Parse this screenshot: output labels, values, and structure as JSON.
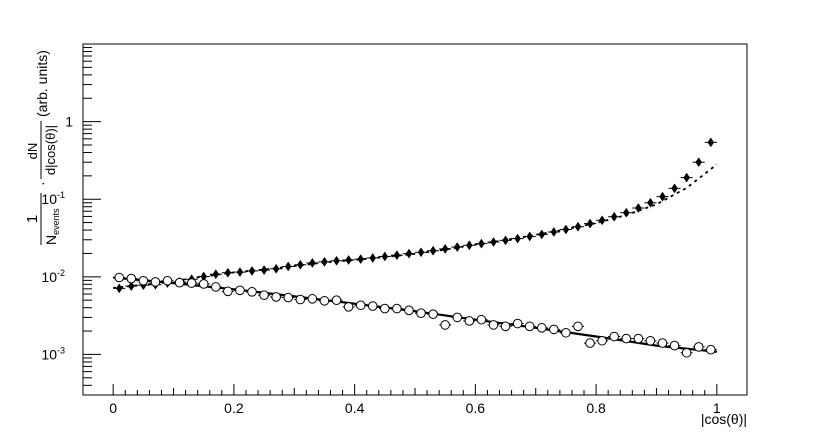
{
  "chart_data": {
    "type": "scatter",
    "title": "",
    "xlabel": "|cos(θ)|",
    "ylabel": {
      "prefix": "1",
      "n": "N",
      "n_sub": "events",
      "dot": "·",
      "dn": "dN",
      "dcos": "d|cos(θ)|",
      "units": "(arb. units)"
    },
    "xlim": [
      -0.05,
      1.05
    ],
    "ylim": [
      0.0003,
      10
    ],
    "yscale": "log",
    "grid": false,
    "legend": "none",
    "x_ticks": [
      {
        "value": 0,
        "label": "0"
      },
      {
        "value": 0.2,
        "label": "0.2"
      },
      {
        "value": 0.4,
        "label": "0.4"
      },
      {
        "value": 0.6,
        "label": "0.6"
      },
      {
        "value": 0.8,
        "label": "0.8"
      },
      {
        "value": 1,
        "label": "1"
      }
    ],
    "y_ticks": [
      {
        "value": 0.001,
        "base": "10",
        "exp": "-3"
      },
      {
        "value": 0.01,
        "base": "10",
        "exp": "-2"
      },
      {
        "value": 0.1,
        "base": "10",
        "exp": "-1"
      },
      {
        "value": 1,
        "base": "1",
        "exp": ""
      }
    ],
    "series": [
      {
        "marker": "filled-diamond",
        "x": [
          0.01,
          0.03,
          0.05,
          0.07,
          0.09,
          0.11,
          0.13,
          0.15,
          0.17,
          0.19,
          0.21,
          0.23,
          0.25,
          0.27,
          0.29,
          0.31,
          0.33,
          0.35,
          0.37,
          0.39,
          0.41,
          0.43,
          0.45,
          0.47,
          0.49,
          0.51,
          0.53,
          0.55,
          0.57,
          0.59,
          0.61,
          0.63,
          0.65,
          0.67,
          0.69,
          0.71,
          0.73,
          0.75,
          0.77,
          0.79,
          0.81,
          0.83,
          0.85,
          0.87,
          0.89,
          0.91,
          0.93,
          0.95,
          0.97,
          0.99
        ],
        "y": [
          0.0071,
          0.0076,
          0.0078,
          0.0079,
          0.0083,
          0.0086,
          0.0093,
          0.0101,
          0.0108,
          0.0113,
          0.0115,
          0.0119,
          0.0122,
          0.0127,
          0.0136,
          0.0143,
          0.0151,
          0.0156,
          0.0161,
          0.0165,
          0.0169,
          0.0175,
          0.0183,
          0.019,
          0.0199,
          0.0207,
          0.0217,
          0.0229,
          0.0242,
          0.0255,
          0.0268,
          0.0281,
          0.0295,
          0.0311,
          0.0331,
          0.0352,
          0.0378,
          0.0407,
          0.0442,
          0.0485,
          0.0535,
          0.0595,
          0.067,
          0.077,
          0.09,
          0.108,
          0.138,
          0.19,
          0.3,
          0.54
        ]
      },
      {
        "marker": "open-circle",
        "x": [
          0.01,
          0.03,
          0.05,
          0.07,
          0.09,
          0.11,
          0.13,
          0.15,
          0.17,
          0.19,
          0.21,
          0.23,
          0.25,
          0.27,
          0.29,
          0.31,
          0.33,
          0.35,
          0.37,
          0.39,
          0.41,
          0.43,
          0.45,
          0.47,
          0.49,
          0.51,
          0.53,
          0.55,
          0.57,
          0.59,
          0.61,
          0.63,
          0.65,
          0.67,
          0.69,
          0.71,
          0.73,
          0.75,
          0.77,
          0.79,
          0.81,
          0.83,
          0.85,
          0.87,
          0.89,
          0.91,
          0.93,
          0.95,
          0.97,
          0.99
        ],
        "y": [
          0.0098,
          0.0095,
          0.0089,
          0.0086,
          0.0089,
          0.0084,
          0.0083,
          0.0081,
          0.0074,
          0.0065,
          0.0067,
          0.0064,
          0.0058,
          0.0055,
          0.0054,
          0.0051,
          0.0052,
          0.0049,
          0.005,
          0.0041,
          0.0043,
          0.0042,
          0.0039,
          0.0039,
          0.0037,
          0.0034,
          0.0033,
          0.0024,
          0.003,
          0.0027,
          0.0028,
          0.0024,
          0.0023,
          0.0025,
          0.0023,
          0.0022,
          0.0021,
          0.0019,
          0.0023,
          0.0014,
          0.0015,
          0.0017,
          0.0016,
          0.0016,
          0.0015,
          0.0014,
          0.0013,
          0.00105,
          0.00125,
          0.00115
        ]
      },
      {
        "marker": "line",
        "style": "dashed",
        "x": [
          0,
          0.05,
          0.1,
          0.15,
          0.2,
          0.25,
          0.3,
          0.35,
          0.4,
          0.45,
          0.5,
          0.55,
          0.6,
          0.65,
          0.7,
          0.75,
          0.8,
          0.85,
          0.9,
          0.95,
          1
        ],
        "y": [
          0.0072,
          0.0079,
          0.0088,
          0.0101,
          0.0114,
          0.0124,
          0.0138,
          0.0153,
          0.0165,
          0.018,
          0.0198,
          0.0224,
          0.026,
          0.0298,
          0.0347,
          0.0408,
          0.0494,
          0.0625,
          0.086,
          0.14,
          0.28
        ]
      },
      {
        "marker": "line",
        "style": "solid",
        "x": [
          0,
          0.1,
          0.2,
          0.3,
          0.4,
          0.5,
          0.6,
          0.7,
          0.8,
          0.9,
          1
        ],
        "y": [
          0.0098,
          0.0083,
          0.0069,
          0.0056,
          0.0045,
          0.0036,
          0.0028,
          0.0022,
          0.0017,
          0.0013,
          0.00108
        ]
      }
    ]
  }
}
